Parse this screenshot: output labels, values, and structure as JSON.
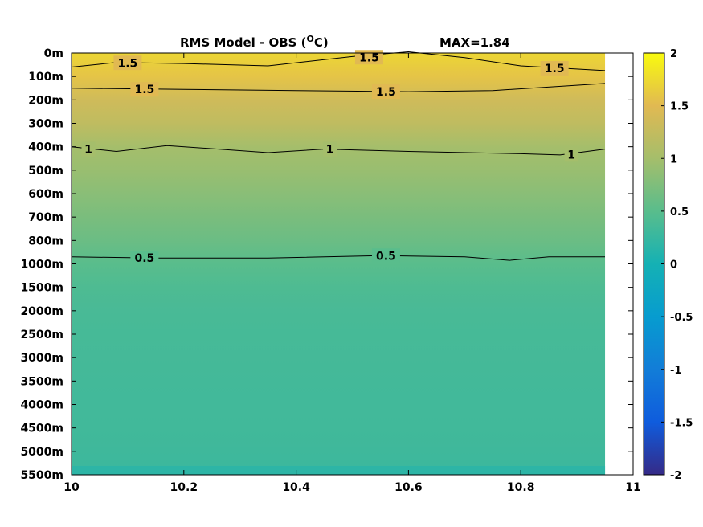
{
  "chart_data": {
    "type": "heatmap",
    "title": "RMS Model - OBS (",
    "title_unit": "O",
    "title_unit_suffix": "C)",
    "max_label": "MAX=1.84",
    "xlabel": "",
    "ylabel": "",
    "xlim": [
      10,
      11
    ],
    "x_ticks": [
      "10",
      "10.2",
      "10.4",
      "10.6",
      "10.8",
      "11"
    ],
    "y_ticks": [
      "0m",
      "100m",
      "200m",
      "300m",
      "400m",
      "500m",
      "600m",
      "700m",
      "800m",
      "1000m",
      "1500m",
      "2000m",
      "2500m",
      "3000m",
      "3500m",
      "4000m",
      "4500m",
      "5000m",
      "5500m"
    ],
    "data_x_range": [
      10,
      10.95
    ],
    "colorbar": {
      "range": [
        -2,
        2
      ],
      "ticks": [
        "2",
        "1.5",
        "1",
        "0.5",
        "0",
        "-0.5",
        "-1",
        "-1.5",
        "-2"
      ],
      "colormap": "parula"
    },
    "value_profile_by_depth": [
      1.72,
      1.58,
      1.35,
      1.22,
      1.0,
      0.92,
      0.82,
      0.72,
      0.62,
      0.5,
      0.42,
      0.38,
      0.36,
      0.35,
      0.34,
      0.33,
      0.32,
      0.31,
      0.28
    ],
    "contours": [
      {
        "level": "1.5",
        "points": [
          [
            10,
            0.6
          ],
          [
            10.08,
            0.4
          ],
          [
            10.2,
            0.45
          ],
          [
            10.35,
            0.55
          ],
          [
            10.5,
            0.15
          ],
          [
            10.6,
            -0.05
          ],
          [
            10.7,
            0.2
          ],
          [
            10.8,
            0.55
          ],
          [
            10.95,
            0.75
          ]
        ],
        "labels": [
          [
            10.1,
            0.42
          ],
          [
            10.53,
            0.18
          ],
          [
            10.86,
            0.65
          ]
        ]
      },
      {
        "level": "1.5",
        "points": [
          [
            10,
            1.5
          ],
          [
            10.2,
            1.55
          ],
          [
            10.4,
            1.6
          ],
          [
            10.6,
            1.65
          ],
          [
            10.75,
            1.6
          ],
          [
            10.95,
            1.3
          ]
        ],
        "labels": [
          [
            10.13,
            1.55
          ],
          [
            10.56,
            1.65
          ]
        ]
      },
      {
        "level": "1",
        "points": [
          [
            10,
            4.0
          ],
          [
            10.08,
            4.2
          ],
          [
            10.17,
            3.95
          ],
          [
            10.35,
            4.25
          ],
          [
            10.45,
            4.1
          ],
          [
            10.6,
            4.2
          ],
          [
            10.8,
            4.3
          ],
          [
            10.87,
            4.35
          ],
          [
            10.95,
            4.1
          ]
        ],
        "labels": [
          [
            10.03,
            4.1
          ],
          [
            10.46,
            4.1
          ],
          [
            10.89,
            4.33
          ]
        ]
      },
      {
        "level": "0.5",
        "points": [
          [
            10,
            8.7
          ],
          [
            10.15,
            8.75
          ],
          [
            10.35,
            8.75
          ],
          [
            10.55,
            8.65
          ],
          [
            10.7,
            8.7
          ],
          [
            10.78,
            8.85
          ],
          [
            10.85,
            8.7
          ],
          [
            10.95,
            8.7
          ]
        ],
        "labels": [
          [
            10.13,
            8.75
          ],
          [
            10.56,
            8.65
          ]
        ]
      }
    ]
  }
}
